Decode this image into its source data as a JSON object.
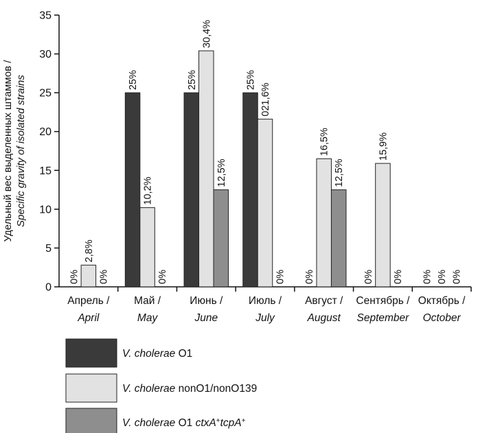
{
  "chart_data": {
    "type": "bar",
    "title": "",
    "ylabel": "Удельный вес выделенных штаммов /",
    "ylabel_en": "Specific gravity of isolated strains",
    "ylim": [
      0,
      35
    ],
    "yticks": [
      0,
      5,
      10,
      15,
      20,
      25,
      30,
      35
    ],
    "categories": [
      {
        "ru": "Апрель /",
        "en": "April"
      },
      {
        "ru": "Май /",
        "en": "May"
      },
      {
        "ru": "Июнь /",
        "en": "June"
      },
      {
        "ru": "Июль /",
        "en": "July"
      },
      {
        "ru": "Август /",
        "en": "August"
      },
      {
        "ru": "Сентябрь /",
        "en": "September"
      },
      {
        "ru": "Октябрь /",
        "en": "October"
      }
    ],
    "series": [
      {
        "name": "V. cholerae O1",
        "legend_parts": [
          {
            "t": "V. cholerae",
            "i": true
          },
          {
            "t": " O1",
            "i": false
          }
        ],
        "color": "#3a3a3a",
        "values": [
          0,
          25,
          25,
          25,
          0,
          0,
          0
        ],
        "labels": [
          "0%",
          "25%",
          "25%",
          "25%",
          "0%",
          "0%",
          "0%"
        ]
      },
      {
        "name": "V. cholerae nonO1/nonO139",
        "legend_parts": [
          {
            "t": "V. cholerae",
            "i": true
          },
          {
            "t": " nonO1/nonO139",
            "i": false
          }
        ],
        "color": "#e2e2e2",
        "values": [
          2.8,
          10.2,
          30.4,
          21.6,
          16.5,
          15.9,
          0
        ],
        "labels": [
          "2,8%",
          "10,2%",
          "30,4%",
          "021,6%",
          "16,5%",
          "15,9%",
          "0%"
        ]
      },
      {
        "name": "V. cholerae O1 ctxA+tcpA+",
        "legend_parts": [
          {
            "t": "V. cholerae",
            "i": true
          },
          {
            "t": " O1 ",
            "i": false
          },
          {
            "t": "ctxA",
            "i": true
          },
          {
            "t": "+",
            "i": false,
            "sup": true
          },
          {
            "t": "tcpA",
            "i": true
          },
          {
            "t": "+",
            "i": false,
            "sup": true
          }
        ],
        "color": "#8e8e8e",
        "values": [
          0,
          0,
          12.5,
          0,
          12.5,
          0,
          0
        ],
        "labels": [
          "0%",
          "0%",
          "12,5%",
          "0%",
          "12,5%",
          "0%",
          "0%"
        ]
      }
    ],
    "grid": false,
    "legend_position": "bottom-left"
  }
}
